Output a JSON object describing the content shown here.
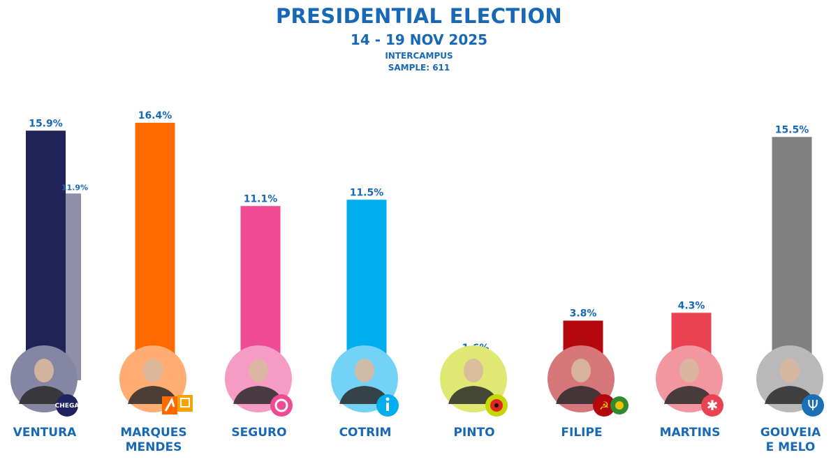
{
  "header": {
    "title": "PRESIDENTIAL ELECTION",
    "dates": "14 - 19 NOV 2025",
    "pollster": "INTERCAMPUS",
    "sample": "SAMPLE: 611"
  },
  "chart_data": {
    "type": "bar",
    "title": "PRESIDENTIAL ELECTION",
    "subtitle": "14 - 19 NOV 2025",
    "ylim": [
      0,
      17
    ],
    "grid": false,
    "categories": [
      {
        "name": [
          "VENTURA"
        ],
        "value": 15.9,
        "label": "15.9%",
        "color": "#202357",
        "badge": "chega-logo",
        "secondary": {
          "value": 11.9,
          "label": "11.9%",
          "color": "#8f8faa"
        }
      },
      {
        "name": [
          "MARQUES",
          "MENDES"
        ],
        "value": 16.4,
        "label": "16.4%",
        "color": "#ff6a00",
        "badge": "psd-cds-logo"
      },
      {
        "name": [
          "SEGURO"
        ],
        "value": 11.1,
        "label": "11.1%",
        "color": "#ef4a94",
        "badge": "ps-fist-logo"
      },
      {
        "name": [
          "COTRIM"
        ],
        "value": 11.5,
        "label": "11.5%",
        "color": "#00aeef",
        "badge": "il-logo"
      },
      {
        "name": [
          "PINTO"
        ],
        "value": 1.6,
        "label": "1.6%",
        "color": "#c5d600",
        "badge": "livre-logo"
      },
      {
        "name": [
          "FILIPE"
        ],
        "value": 3.8,
        "label": "3.8%",
        "color": "#b5070e",
        "badge": "cdu-logo"
      },
      {
        "name": [
          "MARTINS"
        ],
        "value": 4.3,
        "label": "4.3%",
        "color": "#e84253",
        "badge": "be-logo"
      },
      {
        "name": [
          "GOUVEIA",
          "E MELO"
        ],
        "value": 15.5,
        "label": "15.5%",
        "color": "#808080",
        "badge": "trident-logo"
      }
    ]
  },
  "badges": {
    "chega_text": "CHEGA"
  }
}
